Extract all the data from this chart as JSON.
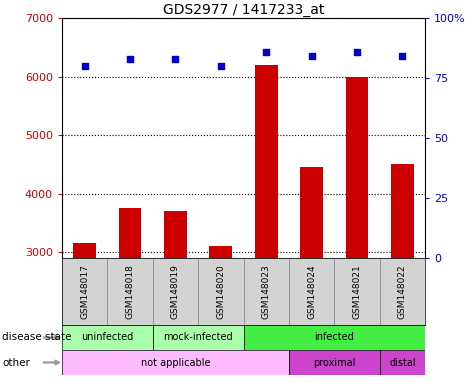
{
  "title": "GDS2977 / 1417233_at",
  "samples": [
    "GSM148017",
    "GSM148018",
    "GSM148019",
    "GSM148020",
    "GSM148023",
    "GSM148024",
    "GSM148021",
    "GSM148022"
  ],
  "counts": [
    3150,
    3750,
    3700,
    3100,
    6200,
    4450,
    6000,
    4500
  ],
  "percentile_ranks": [
    80,
    83,
    83,
    80,
    86,
    84,
    86,
    84
  ],
  "ylim_left": [
    2900,
    7000
  ],
  "ylim_right": [
    0,
    100
  ],
  "yticks_left": [
    3000,
    4000,
    5000,
    6000,
    7000
  ],
  "yticks_right": [
    0,
    25,
    50,
    75,
    100
  ],
  "bar_color": "#cc0000",
  "dot_color": "#0000cc",
  "bar_width": 0.5,
  "plot_bg_color": "#ffffff",
  "left_tick_color": "#cc0000",
  "right_tick_color": "#0000cc",
  "disease_state": [
    {
      "label": "uninfected",
      "start": 0,
      "end": 2,
      "color": "#aaffaa"
    },
    {
      "label": "mock-infected",
      "start": 2,
      "end": 4,
      "color": "#aaffaa"
    },
    {
      "label": "infected",
      "start": 4,
      "end": 8,
      "color": "#44ee44"
    }
  ],
  "other": [
    {
      "label": "not applicable",
      "start": 0,
      "end": 5,
      "color": "#ffbbff"
    },
    {
      "label": "proximal",
      "start": 5,
      "end": 7,
      "color": "#cc44cc"
    },
    {
      "label": "distal",
      "start": 7,
      "end": 8,
      "color": "#cc44cc"
    }
  ],
  "sample_box_color": "#d3d3d3",
  "sample_box_edge_color": "#888888"
}
